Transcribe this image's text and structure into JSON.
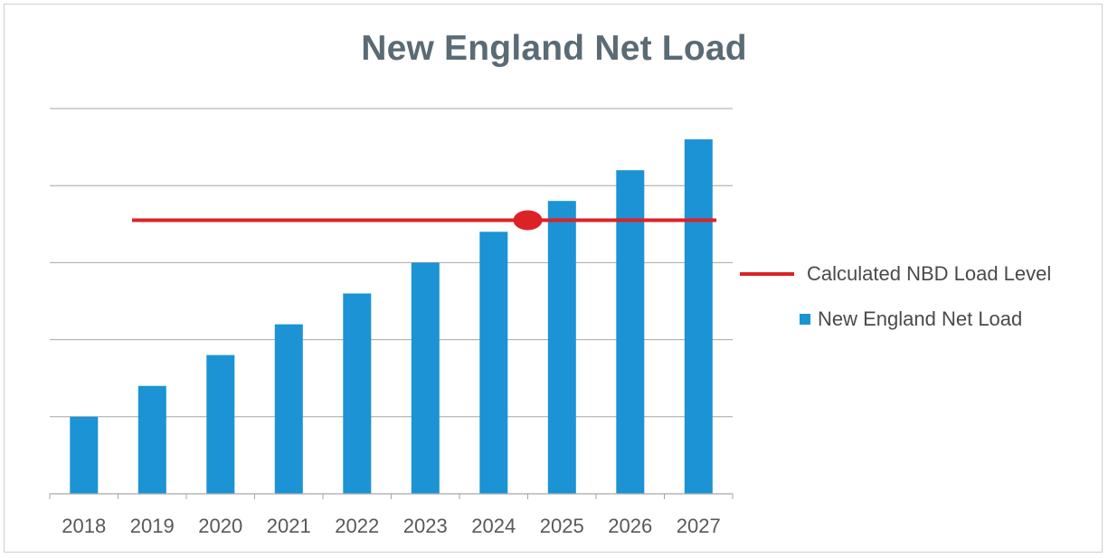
{
  "chart_data": {
    "type": "bar",
    "title": "New England Net Load",
    "categories": [
      "2018",
      "2019",
      "2020",
      "2021",
      "2022",
      "2023",
      "2024",
      "2025",
      "2026",
      "2027"
    ],
    "series": [
      {
        "name": "New England Net Load",
        "type": "bar",
        "values": [
          1,
          1.4,
          1.8,
          2.2,
          2.6,
          3.0,
          3.4,
          3.8,
          4.2,
          4.6
        ]
      },
      {
        "name": "Calculated NBD Load Level",
        "type": "line",
        "value": 3.55
      }
    ],
    "highlight_point": {
      "x": "2024.5",
      "y": 3.55
    },
    "ylim": [
      0,
      5
    ],
    "grid": true,
    "y_tick_labels_visible": false,
    "legend": "right",
    "colors": {
      "bar": "#1b93d4",
      "line": "#dc2227",
      "grid": "#a6a6a6",
      "axis_text": "#595959",
      "title": "#5a6b75"
    }
  }
}
